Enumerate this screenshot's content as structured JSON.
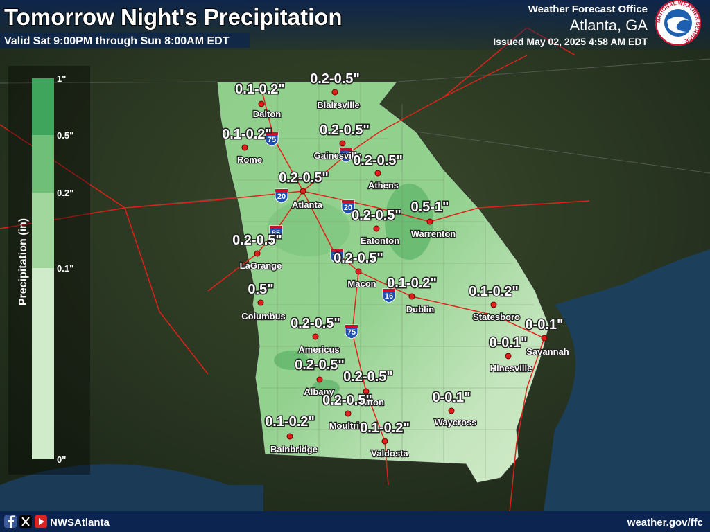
{
  "header": {
    "title": "Tomorrow Night's Precipitation",
    "subtitle": "Valid Sat 9:00PM through Sun 8:00AM EDT",
    "office": "Weather Forecast Office",
    "location": "Atlanta, GA",
    "issued": "Issued May 02, 2025 4:58 AM EDT",
    "logo_text": "NATIONAL WEATHER SERVICE"
  },
  "legend": {
    "title": "Precipitation (in)",
    "ticks": [
      "1\"",
      "0.5\"",
      "0.2\"",
      "0.1\"",
      "0\""
    ],
    "colors": [
      "#3fa45c",
      "#6fbf78",
      "#a1d69c",
      "#d0ebca"
    ]
  },
  "cities": [
    {
      "name": "Dalton",
      "amount": "0.1-0.2\""
    },
    {
      "name": "Blairsville",
      "amount": "0.2-0.5\""
    },
    {
      "name": "Rome",
      "amount": "0.1-0.2\""
    },
    {
      "name": "Gainesville",
      "amount": "0.2-0.5\""
    },
    {
      "name": "Athens",
      "amount": "0.2-0.5\""
    },
    {
      "name": "Atlanta",
      "amount": "0.2-0.5\""
    },
    {
      "name": "Eatonton",
      "amount": "0.2-0.5\""
    },
    {
      "name": "Warrenton",
      "amount": "0.5-1\""
    },
    {
      "name": "LaGrange",
      "amount": "0.2-0.5\""
    },
    {
      "name": "Macon",
      "amount": "0.2-0.5\""
    },
    {
      "name": "Dublin",
      "amount": "0.1-0.2\""
    },
    {
      "name": "Statesboro",
      "amount": "0.1-0.2\""
    },
    {
      "name": "Columbus",
      "amount": "0.5\""
    },
    {
      "name": "Savannah",
      "amount": "0-0.1\""
    },
    {
      "name": "Hinesville",
      "amount": "0-0.1\""
    },
    {
      "name": "Americus",
      "amount": "0.2-0.5\""
    },
    {
      "name": "Albany",
      "amount": "0.2-0.5\""
    },
    {
      "name": "Tifton",
      "amount": "0.2-0.5\""
    },
    {
      "name": "Moultrie",
      "amount": "0.2-0.5\""
    },
    {
      "name": "Waycross",
      "amount": "0-0.1\""
    },
    {
      "name": "Bainbridge",
      "amount": "0.1-0.2\""
    },
    {
      "name": "Valdosta",
      "amount": "0.1-0.2\""
    }
  ],
  "highways": [
    "75",
    "85",
    "20",
    "85",
    "20",
    "75",
    "16",
    "75"
  ],
  "footer": {
    "handle": "NWSAtlanta",
    "url": "weather.gov/ffc"
  }
}
